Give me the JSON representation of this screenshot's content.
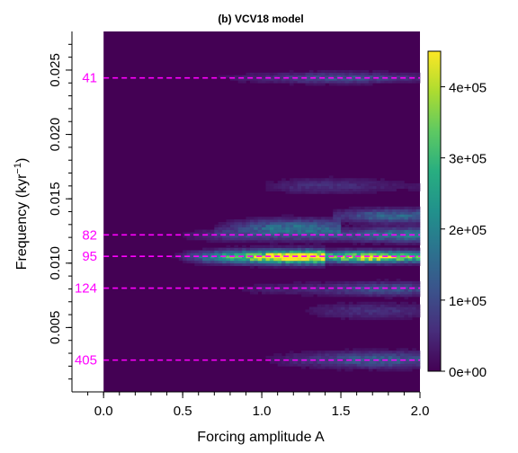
{
  "chart_data": {
    "type": "heatmap",
    "title": "(b) VCV18 model",
    "xlabel": "Forcing amplitude A",
    "ylabel": "Frequency (kyr",
    "ylabel_sup": "−1",
    "ylabel_close": ")",
    "xlim": [
      -0.2,
      2.0
    ],
    "ylim": [
      0.0,
      0.028
    ],
    "data_x_range": [
      0.0,
      2.0
    ],
    "x_ticks": [
      0.0,
      0.5,
      1.0,
      1.5,
      2.0
    ],
    "x_tick_labels": [
      "0.0",
      "0.5",
      "1.0",
      "1.5",
      "2.0"
    ],
    "y_ticks": [
      0.005,
      0.01,
      0.015,
      0.02,
      0.025
    ],
    "y_tick_labels": [
      "0.005",
      "0.010",
      "0.015",
      "0.020",
      "0.025"
    ],
    "colorbar": {
      "range": [
        0,
        450000
      ],
      "ticks": [
        0,
        100000,
        200000,
        300000,
        400000
      ],
      "tick_labels": [
        "0e+00",
        "1e+05",
        "2e+05",
        "3e+05",
        "4e+05"
      ],
      "colormap": "viridis"
    },
    "reference_lines": [
      {
        "label": "41",
        "frequency": 0.02439
      },
      {
        "label": "82",
        "frequency": 0.0122
      },
      {
        "label": "95",
        "frequency": 0.01053
      },
      {
        "label": "124",
        "frequency": 0.00806
      },
      {
        "label": "405",
        "frequency": 0.00247
      }
    ],
    "reference_line_color": "#ff00ff",
    "features": [
      {
        "frequency": 0.0105,
        "a_from": 0.5,
        "a_to": 2.0,
        "peak_a": 1.7,
        "peak_power": 440000,
        "width": 0.0004
      },
      {
        "frequency": 0.0105,
        "a_from": 0.6,
        "a_to": 1.35,
        "peak_a": 1.25,
        "peak_power": 330000,
        "width": 0.0005
      },
      {
        "frequency": 0.0122,
        "a_from": 0.5,
        "a_to": 2.0,
        "peak_a": 1.95,
        "peak_power": 190000,
        "width": 0.0005
      },
      {
        "frequency": 0.0128,
        "a_from": 0.8,
        "a_to": 1.45,
        "peak_a": 1.2,
        "peak_power": 150000,
        "width": 0.0006
      },
      {
        "frequency": 0.008,
        "a_from": 0.8,
        "a_to": 2.0,
        "peak_a": 1.8,
        "peak_power": 110000,
        "width": 0.0005
      },
      {
        "frequency": 0.0244,
        "a_from": 0.7,
        "a_to": 2.0,
        "peak_a": 1.5,
        "peak_power": 110000,
        "width": 0.0004
      },
      {
        "frequency": 0.0025,
        "a_from": 1.0,
        "a_to": 2.0,
        "peak_a": 1.75,
        "peak_power": 130000,
        "width": 0.0006
      },
      {
        "frequency": 0.0137,
        "a_from": 1.55,
        "a_to": 2.0,
        "peak_a": 1.8,
        "peak_power": 150000,
        "width": 0.0005
      },
      {
        "frequency": 0.016,
        "a_from": 1.0,
        "a_to": 2.0,
        "peak_a": 1.4,
        "peak_power": 60000,
        "width": 0.0006
      },
      {
        "frequency": 0.0063,
        "a_from": 1.2,
        "a_to": 2.0,
        "peak_a": 1.7,
        "peak_power": 60000,
        "width": 0.0006
      }
    ],
    "grid": false,
    "legend": "colorbar-right"
  }
}
